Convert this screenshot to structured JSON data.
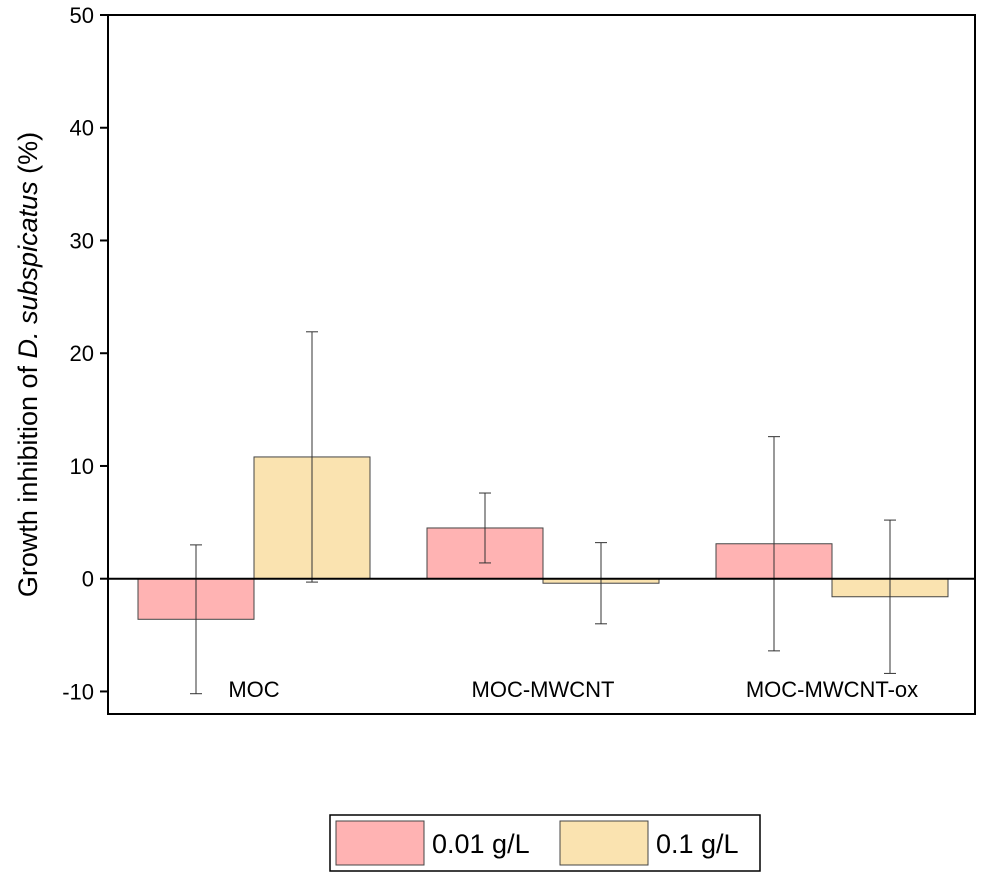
{
  "chart_data": {
    "type": "bar",
    "categories": [
      "MOC",
      "MOC-MWCNT",
      "MOC-MWCNT-ox"
    ],
    "series": [
      {
        "name": "0.01 g/L",
        "color": "#FFB3B3",
        "values": [
          -3.6,
          4.5,
          3.1
        ],
        "errors": [
          6.6,
          3.1,
          9.5
        ]
      },
      {
        "name": "0.1 g/L",
        "color": "#FAE3B0",
        "values": [
          10.8,
          -0.4,
          -1.6
        ],
        "errors": [
          11.1,
          3.6,
          6.8
        ]
      }
    ],
    "ylabel_prefix": "Growth inhibition of ",
    "ylabel_italic": "D. subspicatus",
    "ylabel_suffix": " (%)",
    "xlabel": "",
    "ylim": [
      -12,
      50
    ],
    "yticks": [
      -10,
      0,
      10,
      20,
      30,
      40,
      50
    ],
    "ytick_labels": [
      "-10",
      "0",
      "10",
      "20",
      "30",
      "40",
      "50"
    ],
    "grid": false,
    "legend_position": "bottom-center"
  }
}
